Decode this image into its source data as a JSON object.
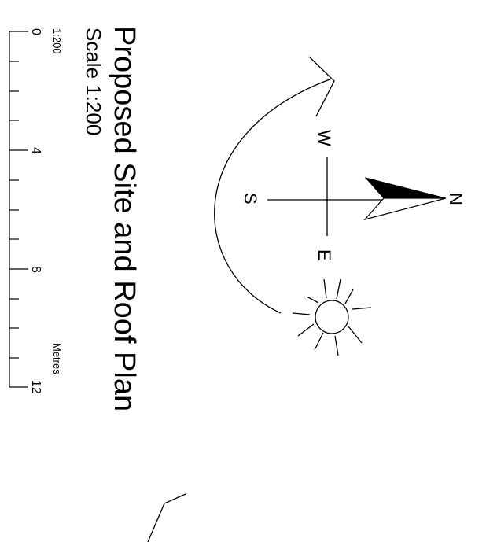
{
  "title": "Proposed Site and Roof Plan",
  "scale_text": "Scale 1:200",
  "scale_bar": {
    "ratio_label": "1:200",
    "unit_label": "Metres",
    "tick_labels": [
      "0",
      "4",
      "8",
      "12"
    ]
  },
  "compass": {
    "north": "N",
    "south": "S",
    "east": "E",
    "west": "W"
  },
  "icons": [
    "north-arrow-icon",
    "sun-icon",
    "sun-path-arc-icon"
  ],
  "colors": {
    "ink": "#000000",
    "paper": "#ffffff"
  }
}
